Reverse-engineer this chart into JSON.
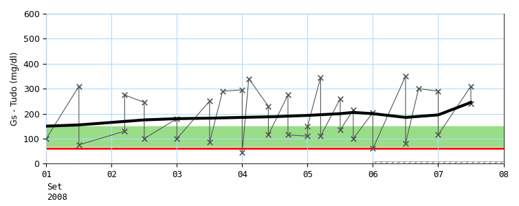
{
  "x_ticks": [
    1,
    2,
    3,
    4,
    5,
    6,
    7,
    8
  ],
  "x_tick_labels": [
    "01",
    "02",
    "03",
    "04",
    "05",
    "06",
    "07",
    "08"
  ],
  "x_label_below": [
    "Set",
    "2008"
  ],
  "ylabel": "Gs - Tudo (mg/dl)",
  "ylim": [
    0,
    600
  ],
  "yticks": [
    0,
    100,
    200,
    300,
    400,
    500,
    600
  ],
  "xlim": [
    1,
    8
  ],
  "green_band_low": 70,
  "green_band_high": 150,
  "red_line": 60,
  "hatch_start_x": 6.0,
  "hatch_end_x": 8.0,
  "hatch_y_low": 0,
  "hatch_y_high": 8,
  "scatter_x": [
    1.0,
    1.5,
    1.5,
    2.2,
    2.2,
    2.5,
    2.5,
    3.0,
    3.0,
    3.5,
    3.5,
    3.7,
    4.0,
    4.0,
    4.1,
    4.4,
    4.4,
    4.7,
    4.7,
    5.0,
    5.0,
    5.2,
    5.2,
    5.5,
    5.5,
    5.7,
    5.7,
    6.0,
    6.0,
    6.5,
    6.5,
    6.7,
    7.0,
    7.0,
    7.5,
    7.5
  ],
  "scatter_y": [
    100,
    310,
    75,
    130,
    275,
    245,
    100,
    180,
    100,
    250,
    85,
    290,
    295,
    45,
    340,
    230,
    115,
    275,
    115,
    110,
    150,
    345,
    110,
    260,
    135,
    215,
    100,
    205,
    60,
    350,
    80,
    300,
    290,
    115,
    310,
    240
  ],
  "trend_x": [
    1.0,
    1.5,
    2.0,
    2.5,
    3.0,
    3.5,
    4.0,
    4.5,
    5.0,
    5.5,
    5.7,
    6.0,
    6.5,
    7.0,
    7.5
  ],
  "trend_y": [
    150,
    155,
    165,
    175,
    180,
    182,
    185,
    188,
    193,
    200,
    205,
    200,
    185,
    195,
    245
  ],
  "scatter_color": "#555555",
  "trend_color": "#000000",
  "grid_color": "#aaddff",
  "green_color": "#99dd88",
  "red_color": "#ff0000",
  "bg_color": "#ffffff",
  "hatch_color": "#888888"
}
